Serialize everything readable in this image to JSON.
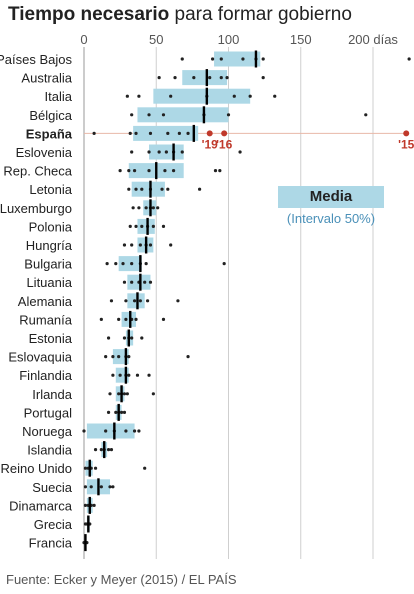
{
  "title": {
    "bold": "Tiempo necesario",
    "rest": " para formar gobierno"
  },
  "source": "Fuente: Ecker y Meyer (2015) / EL PAÍS",
  "legend": {
    "label": "Media",
    "sublabel": "(Intervalo 50%)"
  },
  "colors": {
    "iqr": "#add8e6",
    "median": "#000000",
    "dot": "#222222",
    "highlight": "#c0392b",
    "highlight_line": "#e8b8a8",
    "grid": "#cfcfcf"
  },
  "chart_data": {
    "type": "boxplot-dots",
    "x_ticks": [
      0,
      50,
      100,
      150,
      200
    ],
    "x_tick_labels": [
      "0",
      "50",
      "100",
      "150",
      "200 días"
    ],
    "xlim": [
      0,
      225
    ],
    "grid": true,
    "countries": [
      {
        "name": "Países Bajos",
        "bold": false,
        "q1": 90,
        "median": 119,
        "q3": 122,
        "points": [
          68,
          89,
          95,
          110,
          119,
          124,
          225
        ]
      },
      {
        "name": "Australia",
        "bold": false,
        "q1": 68,
        "median": 85,
        "q3": 99,
        "points": [
          52,
          63,
          76,
          87,
          95,
          99,
          124
        ]
      },
      {
        "name": "Italia",
        "bold": false,
        "q1": 48,
        "median": 85,
        "q3": 115,
        "points": [
          30,
          38,
          60,
          85,
          104,
          115,
          132
        ]
      },
      {
        "name": "Bélgica",
        "bold": false,
        "q1": 37,
        "median": 83,
        "q3": 100,
        "points": [
          33,
          45,
          55,
          83,
          100,
          195
        ]
      },
      {
        "name": "España",
        "bold": true,
        "q1": 34,
        "median": 76,
        "q3": 79,
        "points": [
          7,
          32,
          36,
          46,
          58,
          66,
          72
        ],
        "highlights": [
          {
            "label": "'19",
            "value": 87
          },
          {
            "label": "'16",
            "value": 97
          },
          {
            "label": "'15",
            "value": 223
          }
        ]
      },
      {
        "name": "Eslovenia",
        "bold": false,
        "q1": 45,
        "median": 62,
        "q3": 69,
        "points": [
          33,
          45,
          52,
          57,
          62,
          68,
          108
        ]
      },
      {
        "name": "Rep. Checa",
        "bold": false,
        "q1": 31,
        "median": 50,
        "q3": 69,
        "points": [
          25,
          31,
          35,
          45,
          56,
          62,
          91,
          94
        ]
      },
      {
        "name": "Letonia",
        "bold": false,
        "q1": 33,
        "median": 46,
        "q3": 56,
        "points": [
          31,
          36,
          40,
          46,
          54,
          58,
          80
        ]
      },
      {
        "name": "Luxemburgo",
        "bold": false,
        "q1": 41,
        "median": 46,
        "q3": 50,
        "points": [
          34,
          38,
          43,
          46,
          48,
          51
        ]
      },
      {
        "name": "Polonia",
        "bold": false,
        "q1": 37,
        "median": 44,
        "q3": 49,
        "points": [
          32,
          36,
          40,
          44,
          48,
          55
        ]
      },
      {
        "name": "Hungría",
        "bold": false,
        "q1": 37,
        "median": 43,
        "q3": 48,
        "points": [
          28,
          33,
          39,
          43,
          46,
          60
        ]
      },
      {
        "name": "Bulgaria",
        "bold": false,
        "q1": 24,
        "median": 39,
        "q3": 40,
        "points": [
          16,
          22,
          27,
          33,
          39,
          43,
          97
        ]
      },
      {
        "name": "Lituania",
        "bold": false,
        "q1": 30,
        "median": 39,
        "q3": 46,
        "points": [
          28,
          33,
          38,
          42,
          46
        ]
      },
      {
        "name": "Alemania",
        "bold": false,
        "q1": 30,
        "median": 37,
        "q3": 42,
        "points": [
          19,
          29,
          35,
          39,
          44,
          65
        ]
      },
      {
        "name": "Rumanía",
        "bold": false,
        "q1": 26,
        "median": 32,
        "q3": 36,
        "points": [
          12,
          24,
          29,
          33,
          36,
          55
        ]
      },
      {
        "name": "Estonia",
        "bold": false,
        "q1": 29,
        "median": 31,
        "q3": 34,
        "points": [
          17,
          28,
          31,
          33,
          40
        ]
      },
      {
        "name": "Eslovaquia",
        "bold": false,
        "q1": 20,
        "median": 29,
        "q3": 31,
        "points": [
          15,
          20,
          24,
          29,
          31,
          72
        ]
      },
      {
        "name": "Finlandia",
        "bold": false,
        "q1": 22,
        "median": 29,
        "q3": 31,
        "points": [
          20,
          25,
          29,
          31,
          37,
          45
        ]
      },
      {
        "name": "Irlanda",
        "bold": false,
        "q1": 22,
        "median": 26,
        "q3": 28,
        "points": [
          18,
          24,
          26,
          28,
          30,
          48
        ]
      },
      {
        "name": "Portugal",
        "bold": false,
        "q1": 22,
        "median": 24,
        "q3": 26,
        "points": [
          17,
          22,
          24,
          26,
          28
        ]
      },
      {
        "name": "Noruega",
        "bold": false,
        "q1": 2,
        "median": 21,
        "q3": 35,
        "points": [
          0,
          15,
          21,
          29,
          35,
          38
        ]
      },
      {
        "name": "Islandia",
        "bold": false,
        "q1": 12,
        "median": 14,
        "q3": 16,
        "points": [
          8,
          12,
          14,
          17,
          19
        ]
      },
      {
        "name": "Reino Unido",
        "bold": false,
        "q1": 1,
        "median": 4,
        "q3": 6,
        "points": [
          1,
          3,
          5,
          8,
          42
        ]
      },
      {
        "name": "Suecia",
        "bold": false,
        "q1": 2,
        "median": 10,
        "q3": 18,
        "points": [
          1,
          5,
          12,
          18,
          20
        ]
      },
      {
        "name": "Dinamarca",
        "bold": false,
        "q1": 2,
        "median": 4,
        "q3": 6,
        "points": [
          1,
          3,
          5,
          7
        ]
      },
      {
        "name": "Grecia",
        "bold": false,
        "q1": 2,
        "median": 3,
        "q3": 4,
        "points": [
          1,
          2,
          3,
          4
        ]
      },
      {
        "name": "Francia",
        "bold": false,
        "q1": 0.5,
        "median": 1,
        "q3": 1.5,
        "points": [
          0,
          1,
          2
        ]
      }
    ]
  }
}
